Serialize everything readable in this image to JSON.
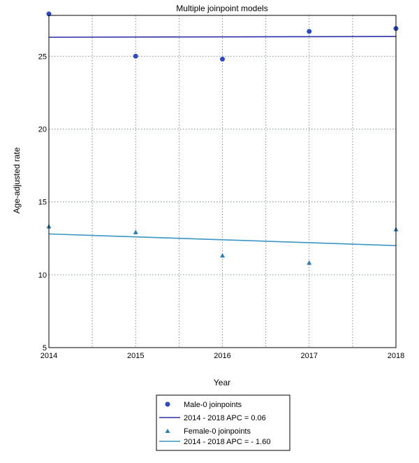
{
  "chart_data": {
    "type": "scatter",
    "title": "Multiple joinpoint models",
    "xlabel": "Year",
    "ylabel": "Age-adjusted rate",
    "xlim": [
      2014,
      2018
    ],
    "ylim": [
      5,
      27.8
    ],
    "xticks": [
      2014,
      2015,
      2016,
      2017,
      2018
    ],
    "xtick_labels": [
      "2014",
      "2015",
      "2016",
      "2017",
      "2018"
    ],
    "yticks": [
      5,
      10,
      15,
      20,
      25
    ],
    "ytick_labels": [
      "5",
      "10",
      "15",
      "20",
      "25"
    ],
    "grid": true,
    "legend_position": "bottom-center",
    "series": [
      {
        "name": "Male-0 joinpoints",
        "marker": "circle",
        "color": "#2b47cf",
        "x": [
          2014,
          2015,
          2016,
          2017,
          2018
        ],
        "y": [
          27.9,
          25.0,
          24.8,
          26.7,
          26.9
        ]
      },
      {
        "name": "Female-0 joinpoints",
        "marker": "triangle",
        "color": "#2a7fb8",
        "x": [
          2014,
          2015,
          2016,
          2017,
          2018
        ],
        "y": [
          13.3,
          12.9,
          11.3,
          10.8,
          13.1
        ]
      }
    ],
    "trend_lines": [
      {
        "name": "2014 - 2018 APC = 0.06",
        "color": "#2b2ea8",
        "x": [
          2014,
          2018
        ],
        "y": [
          26.3,
          26.35
        ]
      },
      {
        "name": "2014 - 2018 APC = - 1.60",
        "color": "#3a96c4",
        "x": [
          2014,
          2018
        ],
        "y": [
          12.8,
          12.0
        ]
      }
    ]
  }
}
